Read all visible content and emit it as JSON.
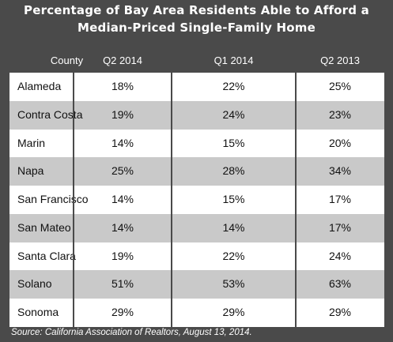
{
  "chart_data": {
    "type": "table",
    "title_lines": [
      "Percentage of Bay Area Residents Able to Afford a",
      "Median-Priced Single-Family Home"
    ],
    "columns": [
      "County",
      "Q2 2014",
      "Q1 2014",
      "Q2 2013"
    ],
    "rows": [
      {
        "county": "Alameda",
        "q2_2014": "18%",
        "q1_2014": "22%",
        "q2_2013": "25%"
      },
      {
        "county": "Contra Costa",
        "q2_2014": "19%",
        "q1_2014": "24%",
        "q2_2013": "23%"
      },
      {
        "county": "Marin",
        "q2_2014": "14%",
        "q1_2014": "15%",
        "q2_2013": "20%"
      },
      {
        "county": "Napa",
        "q2_2014": "25%",
        "q1_2014": "28%",
        "q2_2013": "34%"
      },
      {
        "county": "San Francisco",
        "q2_2014": "14%",
        "q1_2014": "15%",
        "q2_2013": "17%"
      },
      {
        "county": "San Mateo",
        "q2_2014": "14%",
        "q1_2014": "14%",
        "q2_2013": "17%"
      },
      {
        "county": "Santa Clara",
        "q2_2014": "19%",
        "q1_2014": "22%",
        "q2_2013": "24%"
      },
      {
        "county": "Solano",
        "q2_2014": "51%",
        "q1_2014": "53%",
        "q2_2013": "63%"
      },
      {
        "county": "Sonoma",
        "q2_2014": "29%",
        "q1_2014": "29%",
        "q2_2013": "29%"
      }
    ],
    "source": "Source: California Association of Realtors, August 13, 2014."
  },
  "colors": {
    "frame": "#4a4a4a",
    "row_alt": "#c9c9c9",
    "row": "#ffffff",
    "header_text": "#ffffff"
  }
}
